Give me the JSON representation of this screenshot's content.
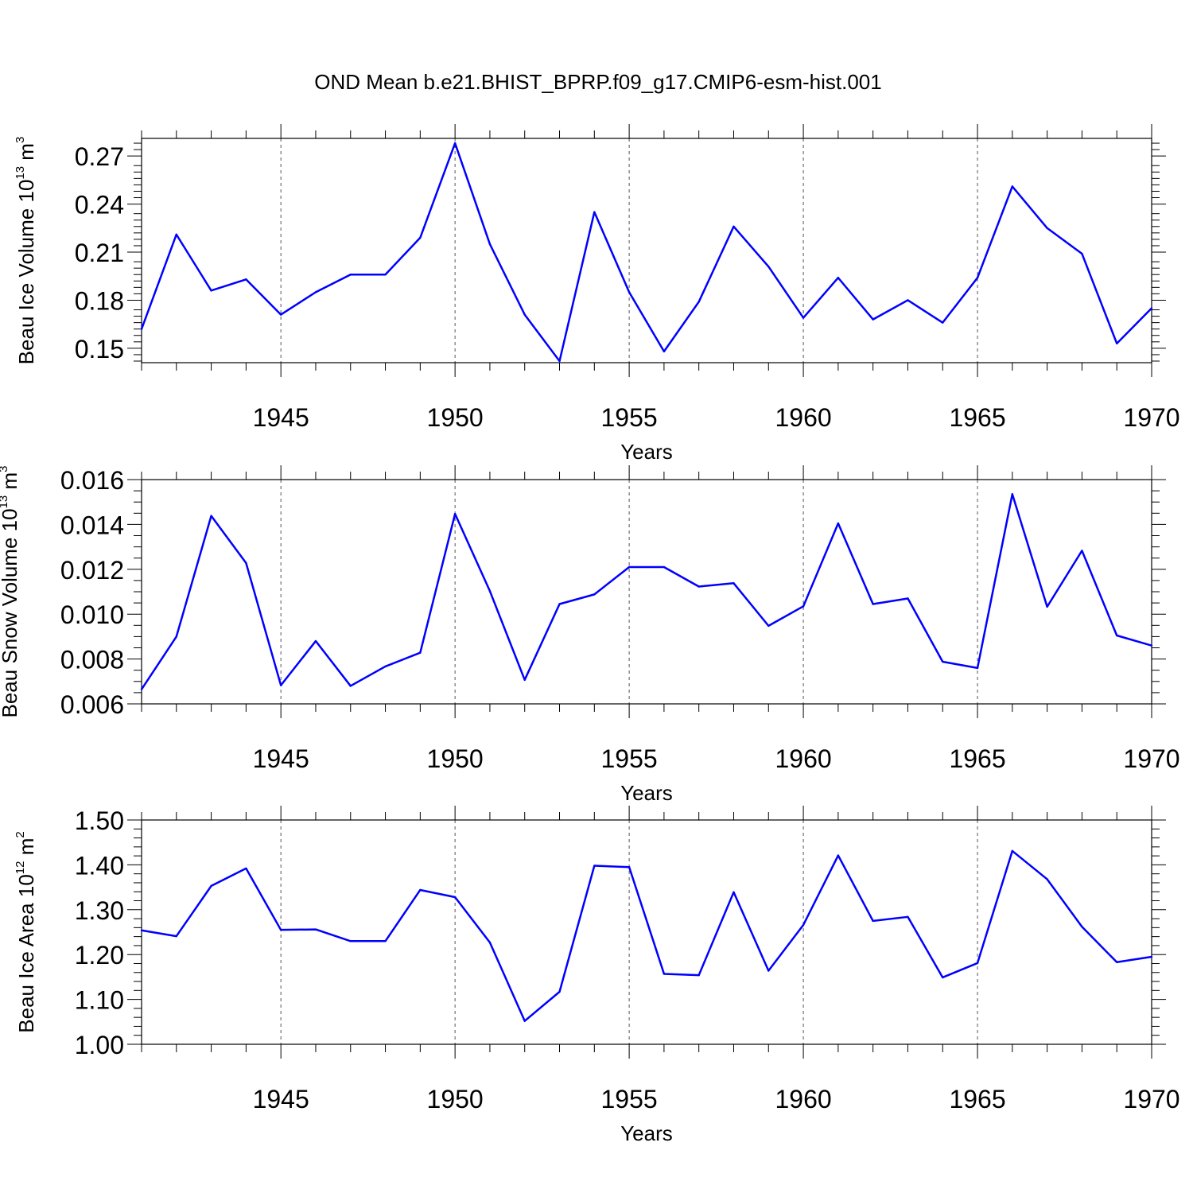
{
  "title": "OND Mean b.e21.BHIST_BPRP.f09_g17.CMIP6-esm-hist.001",
  "colors": {
    "line": "#0000ff",
    "axis": "#000000",
    "grid": "#555555"
  },
  "chart_data": [
    {
      "type": "line",
      "ylabel": {
        "text": "Beau Ice Volume 10",
        "exp": "13",
        "unit": " m",
        "unit_exp": "3"
      },
      "xlabel": "Years",
      "xlim": [
        1941,
        1970
      ],
      "ylim": [
        0.141,
        0.281
      ],
      "yticks": [
        0.15,
        0.18,
        0.21,
        0.24,
        0.27
      ],
      "ytick_labels": [
        "0.15",
        "0.18",
        "0.21",
        "0.24",
        "0.27"
      ],
      "yminor": [
        0.142,
        0.146,
        0.154,
        0.158,
        0.162,
        0.166,
        0.17,
        0.174,
        0.184,
        0.188,
        0.192,
        0.196,
        0.2,
        0.204,
        0.214,
        0.218,
        0.222,
        0.226,
        0.23,
        0.234,
        0.244,
        0.248,
        0.252,
        0.256,
        0.26,
        0.264,
        0.274,
        0.278
      ],
      "xticks": [
        1945,
        1950,
        1955,
        1960,
        1965,
        1970
      ],
      "xtick_labels": [
        "1945",
        "1950",
        "1955",
        "1960",
        "1965",
        "1970"
      ],
      "grid_x": [
        1945,
        1950,
        1955,
        1960,
        1965
      ],
      "x": [
        1941,
        1942,
        1943,
        1944,
        1945,
        1946,
        1947,
        1948,
        1949,
        1950,
        1951,
        1952,
        1953,
        1954,
        1955,
        1956,
        1957,
        1958,
        1959,
        1960,
        1961,
        1962,
        1963,
        1964,
        1965,
        1966,
        1967,
        1968,
        1969,
        1970
      ],
      "series": [
        {
          "values": [
            0.162,
            0.221,
            0.186,
            0.193,
            0.171,
            0.185,
            0.196,
            0.196,
            0.219,
            0.278,
            0.215,
            0.171,
            0.142,
            0.235,
            0.185,
            0.148,
            0.179,
            0.226,
            0.201,
            0.169,
            0.194,
            0.168,
            0.18,
            0.166,
            0.194,
            0.251,
            0.225,
            0.209,
            0.153,
            0.175
          ]
        }
      ]
    },
    {
      "type": "line",
      "ylabel": {
        "text": "Beau Snow Volume 10",
        "exp": "13",
        "unit": " m",
        "unit_exp": "3"
      },
      "xlabel": "Years",
      "xlim": [
        1941,
        1970
      ],
      "ylim": [
        0.006,
        0.016
      ],
      "yticks": [
        0.006,
        0.008,
        0.01,
        0.012,
        0.014,
        0.016
      ],
      "ytick_labels": [
        "0.006",
        "0.008",
        "0.010",
        "0.012",
        "0.014",
        "0.016"
      ],
      "yminor": [
        0.0065,
        0.007,
        0.0075,
        0.0085,
        0.009,
        0.0095,
        0.0105,
        0.011,
        0.0115,
        0.0125,
        0.013,
        0.0135,
        0.0145,
        0.015,
        0.0155
      ],
      "xticks": [
        1945,
        1950,
        1955,
        1960,
        1965,
        1970
      ],
      "xtick_labels": [
        "1945",
        "1950",
        "1955",
        "1960",
        "1965",
        "1970"
      ],
      "grid_x": [
        1945,
        1950,
        1955,
        1960,
        1965
      ],
      "x": [
        1941,
        1942,
        1943,
        1944,
        1945,
        1946,
        1947,
        1948,
        1949,
        1950,
        1951,
        1952,
        1953,
        1954,
        1955,
        1956,
        1957,
        1958,
        1959,
        1960,
        1961,
        1962,
        1963,
        1964,
        1965,
        1966,
        1967,
        1968,
        1969,
        1970
      ],
      "series": [
        {
          "values": [
            0.00665,
            0.009,
            0.01438,
            0.01228,
            0.00683,
            0.0088,
            0.0068,
            0.00767,
            0.00828,
            0.01447,
            0.01103,
            0.00707,
            0.01045,
            0.01088,
            0.0121,
            0.0121,
            0.01123,
            0.01138,
            0.00948,
            0.01035,
            0.01405,
            0.01045,
            0.0107,
            0.00788,
            0.0076,
            0.01535,
            0.01033,
            0.01283,
            0.00905,
            0.0086
          ]
        }
      ]
    },
    {
      "type": "line",
      "ylabel": {
        "text": "Beau Ice Area 10",
        "exp": "12",
        "unit": " m",
        "unit_exp": "2"
      },
      "xlabel": "Years",
      "xlim": [
        1941,
        1970
      ],
      "ylim": [
        1.0,
        1.5
      ],
      "yticks": [
        1.0,
        1.1,
        1.2,
        1.3,
        1.4,
        1.5
      ],
      "ytick_labels": [
        "1.00",
        "1.10",
        "1.20",
        "1.30",
        "1.40",
        "1.50"
      ],
      "yminor": [
        1.02,
        1.04,
        1.06,
        1.08,
        1.12,
        1.14,
        1.16,
        1.18,
        1.22,
        1.24,
        1.26,
        1.28,
        1.32,
        1.34,
        1.36,
        1.38,
        1.42,
        1.44,
        1.46,
        1.48
      ],
      "xticks": [
        1945,
        1950,
        1955,
        1960,
        1965,
        1970
      ],
      "xtick_labels": [
        "1945",
        "1950",
        "1955",
        "1960",
        "1965",
        "1970"
      ],
      "grid_x": [
        1945,
        1950,
        1955,
        1960,
        1965
      ],
      "x": [
        1941,
        1942,
        1943,
        1944,
        1945,
        1946,
        1947,
        1948,
        1949,
        1950,
        1951,
        1952,
        1953,
        1954,
        1955,
        1956,
        1957,
        1958,
        1959,
        1960,
        1961,
        1962,
        1963,
        1964,
        1965,
        1966,
        1967,
        1968,
        1969,
        1970
      ],
      "series": [
        {
          "values": [
            1.254,
            1.241,
            1.353,
            1.392,
            1.255,
            1.256,
            1.23,
            1.23,
            1.344,
            1.328,
            1.227,
            1.052,
            1.117,
            1.398,
            1.395,
            1.157,
            1.154,
            1.339,
            1.164,
            1.266,
            1.421,
            1.275,
            1.284,
            1.149,
            1.181,
            1.431,
            1.368,
            1.262,
            1.183,
            1.195
          ]
        }
      ]
    }
  ]
}
